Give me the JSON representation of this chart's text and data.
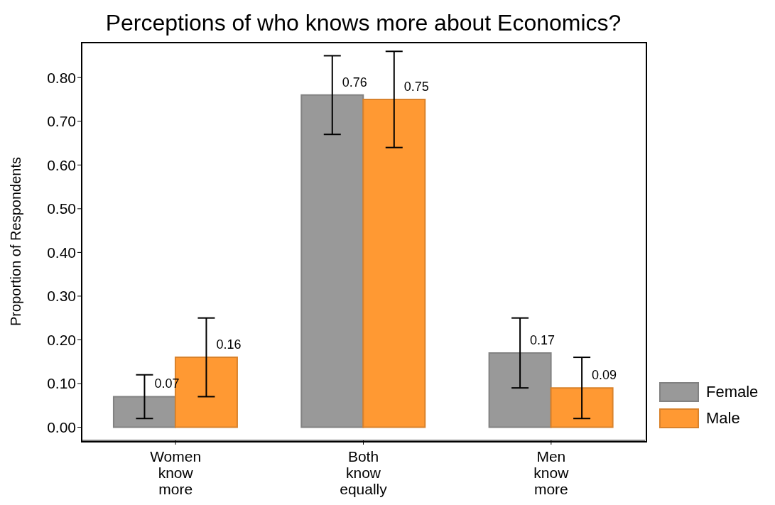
{
  "chart_data": {
    "type": "bar",
    "title": "Perceptions of who knows more about Economics?",
    "ylabel": "Proportion of Respondents",
    "categories": [
      "Women know more",
      "Both know equally",
      "Men know more"
    ],
    "series": [
      {
        "name": "Female",
        "color": "#999999",
        "values": [
          0.07,
          0.76,
          0.17
        ],
        "errors": [
          0.05,
          0.09,
          0.08
        ]
      },
      {
        "name": "Male",
        "color": "#ff9933",
        "values": [
          0.16,
          0.75,
          0.09
        ],
        "errors": [
          0.09,
          0.11,
          0.07
        ]
      }
    ],
    "ylim": [
      -0.03,
      0.88
    ],
    "yticks": [
      {
        "value": 0,
        "label": "0.00"
      },
      {
        "value": 0.1,
        "label": "0.10"
      },
      {
        "value": 0.2,
        "label": "0.20"
      },
      {
        "value": 0.3,
        "label": "0.30"
      },
      {
        "value": 0.4,
        "label": "0.40"
      },
      {
        "value": 0.5,
        "label": "0.50"
      },
      {
        "value": 0.6,
        "label": "0.60"
      },
      {
        "value": 0.7,
        "label": "0.70"
      },
      {
        "value": 0.8,
        "label": "0.80"
      }
    ],
    "data_labels": true,
    "grid": false,
    "legend": "right"
  }
}
